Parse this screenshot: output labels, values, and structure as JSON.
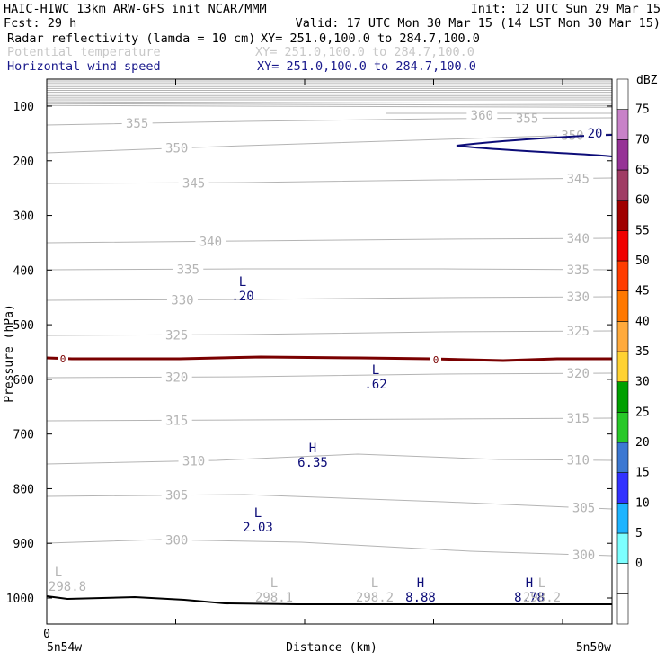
{
  "header": {
    "line1_left": "HAIC-HIWC 13km ARW-GFS init   NCAR/MMM",
    "line1_right": "Init: 12 UTC Sun 29 Mar 15",
    "line2_left": "Fcst:   29 h",
    "line2_right": "Valid: 17 UTC Mon 30 Mar 15 (14 LST Mon 30 Mar 15)",
    "fields": [
      {
        "name": "Radar reflectivity (lamda = 10 cm)",
        "xy": "XY= 251.0,100.0 to 284.7,100.0",
        "color": "#000000"
      },
      {
        "name": "Potential temperature",
        "xy": "XY= 251.0,100.0 to 284.7,100.0",
        "color": "#c8c8c8"
      },
      {
        "name": "Horizontal wind speed",
        "xy": "XY= 251.0,100.0 to 284.7,100.0",
        "color": "#1a1a8c"
      }
    ]
  },
  "colors": {
    "theta": "#b4b4b4",
    "wind": "#0c0c78",
    "freezing": "#7a0000",
    "terrain": "#000000"
  },
  "chart_data": {
    "type": "line",
    "title": "",
    "xlabel": "Distance (km)",
    "ylabel": "Pressure (hPa)",
    "x_range": [
      0,
      33.7
    ],
    "x_ticks": [
      0
    ],
    "x_left_label": "5n54w",
    "x_right_label": "5n50w",
    "y_range_hpa": [
      1050,
      50
    ],
    "y_ticks": [
      100,
      200,
      300,
      400,
      500,
      600,
      700,
      800,
      900,
      1000
    ],
    "potential_temperature_contours": [
      {
        "value": 355,
        "labels": [
          "355",
          "355"
        ]
      },
      {
        "value": 350,
        "labels": [
          "350",
          "350"
        ]
      },
      {
        "value": 345,
        "labels": [
          "345",
          "345"
        ]
      },
      {
        "value": 340,
        "labels": [
          "340",
          "340"
        ]
      },
      {
        "value": 335,
        "labels": [
          "335",
          "335"
        ]
      },
      {
        "value": 330,
        "labels": [
          "330",
          "330"
        ]
      },
      {
        "value": 325,
        "labels": [
          "325",
          "325"
        ]
      },
      {
        "value": 320,
        "labels": [
          "320",
          "320"
        ]
      },
      {
        "value": 315,
        "labels": [
          "315",
          "315"
        ]
      },
      {
        "value": 310,
        "labels": [
          "310",
          "310"
        ]
      },
      {
        "value": 305,
        "labels": [
          "305",
          "305"
        ]
      },
      {
        "value": 300,
        "labels": [
          "300",
          "300"
        ]
      },
      {
        "value": 360,
        "labels": [
          "360"
        ]
      }
    ],
    "wind_speed_contours": [
      {
        "value": 20,
        "label": "20"
      }
    ],
    "freezing_level_labels": [
      "0",
      "0"
    ],
    "extrema_labels": [
      {
        "type": "L",
        "value": ".20",
        "field": "wind"
      },
      {
        "type": "L",
        "value": ".62",
        "field": "wind"
      },
      {
        "type": "H",
        "value": "6.35",
        "field": "wind"
      },
      {
        "type": "L",
        "value": "2.03",
        "field": "wind"
      },
      {
        "type": "H",
        "value": "8.88",
        "field": "wind"
      },
      {
        "type": "H",
        "value": "8.78",
        "field": "wind"
      },
      {
        "type": "L",
        "value": "298.8",
        "field": "theta"
      },
      {
        "type": "L",
        "value": "298.1",
        "field": "theta"
      },
      {
        "type": "L",
        "value": "298.2",
        "field": "theta"
      },
      {
        "type": "L",
        "value": "298.2",
        "field": "theta"
      }
    ],
    "colorbar": {
      "unit": "dBZ",
      "levels": [
        "-",
        "0",
        "5",
        "10",
        "15",
        "20",
        "25",
        "30",
        "35",
        "40",
        "45",
        "50",
        "55",
        "60",
        "65",
        "70",
        "75"
      ],
      "colors": [
        "#ffffff",
        "#ffffff",
        "#7dffff",
        "#1eb4ff",
        "#3232ff",
        "#3c78d2",
        "#28c828",
        "#00a000",
        "#ffd232",
        "#ffaa3c",
        "#ff7800",
        "#ff3c00",
        "#f00000",
        "#a00000",
        "#a03c64",
        "#963296",
        "#c882c8",
        "#ffffff"
      ]
    }
  }
}
